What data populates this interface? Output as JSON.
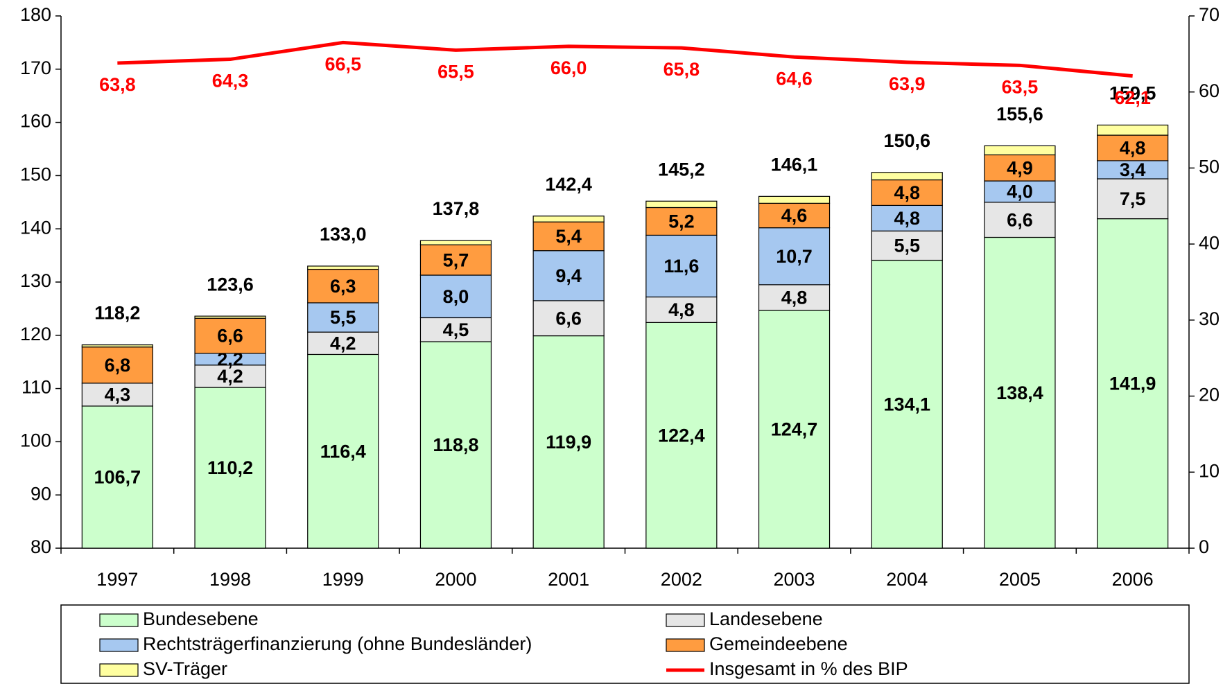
{
  "chart_data": {
    "type": "bar",
    "categories": [
      "1997",
      "1998",
      "1999",
      "2000",
      "2001",
      "2002",
      "2003",
      "2004",
      "2005",
      "2006"
    ],
    "series": [
      {
        "name": "Bundesebene",
        "color": "#ccffcc",
        "values": [
          106.7,
          110.2,
          116.4,
          118.8,
          119.9,
          122.4,
          124.7,
          134.1,
          138.4,
          141.9
        ],
        "value_labels": [
          "106,7",
          "110,2",
          "116,4",
          "118,8",
          "119,9",
          "122,4",
          "124,7",
          "134,1",
          "138,4",
          "141,9"
        ]
      },
      {
        "name": "Landesebene",
        "color": "#e6e6e6",
        "values": [
          4.3,
          4.2,
          4.2,
          4.5,
          6.6,
          4.8,
          4.8,
          5.5,
          6.6,
          7.5
        ],
        "value_labels": [
          "4,3",
          "4,2",
          "4,2",
          "4,5",
          "6,6",
          "4,8",
          "4,8",
          "5,5",
          "6,6",
          "7,5"
        ]
      },
      {
        "name": "Rechtsträgerfinanzierung (ohne Bundesländer)",
        "color": "#a6c8f0",
        "values": [
          0,
          2.2,
          5.5,
          8.0,
          9.4,
          11.6,
          10.7,
          4.8,
          4.0,
          3.4
        ],
        "value_labels": [
          null,
          "2,2",
          "5,5",
          "8,0",
          "9,4",
          "11,6",
          "10,7",
          "4,8",
          "4,0",
          "3,4"
        ]
      },
      {
        "name": "Gemeindeebene",
        "color": "#ff9c40",
        "values": [
          6.8,
          6.6,
          6.3,
          5.7,
          5.4,
          5.2,
          4.6,
          4.8,
          4.9,
          4.8
        ],
        "value_labels": [
          "6,8",
          "6,6",
          "6,3",
          "5,7",
          "5,4",
          "5,2",
          "4,6",
          "4,8",
          "4,9",
          "4,8"
        ]
      },
      {
        "name": "SV-Träger",
        "color": "#ffffa0",
        "values": [
          0.4,
          0.4,
          0.6,
          0.8,
          1.1,
          1.2,
          1.3,
          1.4,
          1.7,
          1.9
        ]
      },
      {
        "name": "Insgesamt in % des BIP",
        "color": "#ff0000",
        "axis": "y2",
        "type": "line",
        "values": [
          63.8,
          64.3,
          66.5,
          65.5,
          66.0,
          65.8,
          64.6,
          63.9,
          63.5,
          62.1
        ],
        "value_labels": [
          "63,8",
          "64,3",
          "66,5",
          "65,5",
          "66,0",
          "65,8",
          "64,6",
          "63,9",
          "63,5",
          "62,1"
        ]
      }
    ],
    "totals": [
      118.2,
      123.6,
      133.0,
      137.8,
      142.4,
      145.2,
      146.1,
      150.6,
      155.6,
      159.5
    ],
    "total_labels": [
      "118,2",
      "123,6",
      "133,0",
      "137,8",
      "142,4",
      "145,2",
      "146,1",
      "150,6",
      "155,6",
      "159,5"
    ],
    "ylim": [
      80,
      180
    ],
    "yticks": [
      80,
      90,
      100,
      110,
      120,
      130,
      140,
      150,
      160,
      170,
      180
    ],
    "y2lim": [
      0,
      70
    ],
    "y2ticks": [
      0,
      10,
      20,
      30,
      40,
      50,
      60,
      70
    ]
  }
}
